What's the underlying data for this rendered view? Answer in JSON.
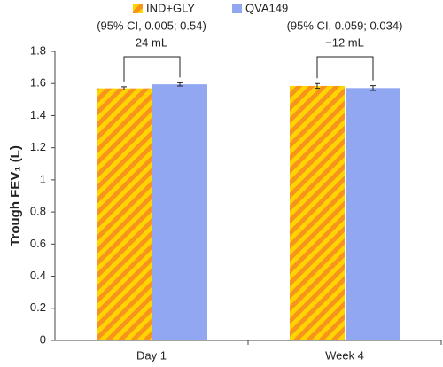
{
  "chart_data": {
    "type": "bar",
    "ylabel": "Trough FEV₁ (L)",
    "categories": [
      "Day 1",
      "Week 4"
    ],
    "series": [
      {
        "name": "IND+GLY",
        "color": "#f7941d",
        "stripe": "#ffd400",
        "values": [
          1.57,
          1.585
        ],
        "errors": [
          0.01,
          0.015
        ]
      },
      {
        "name": "QVA149",
        "color": "#91a7f2",
        "values": [
          1.595,
          1.572
        ],
        "errors": [
          0.01,
          0.015
        ]
      }
    ],
    "annotations": [
      {
        "ci": "(95% CI, 0.005; 0.54)",
        "diff": "24 mL"
      },
      {
        "ci": "(95% CI, 0.059; 0.034)",
        "diff": "−12 mL"
      }
    ],
    "ylim": [
      0,
      1.8
    ],
    "yticks": [
      0,
      0.2,
      0.4,
      0.6,
      0.8,
      1,
      1.2,
      1.4,
      1.6,
      1.8
    ],
    "grid": false,
    "legend": "top"
  }
}
